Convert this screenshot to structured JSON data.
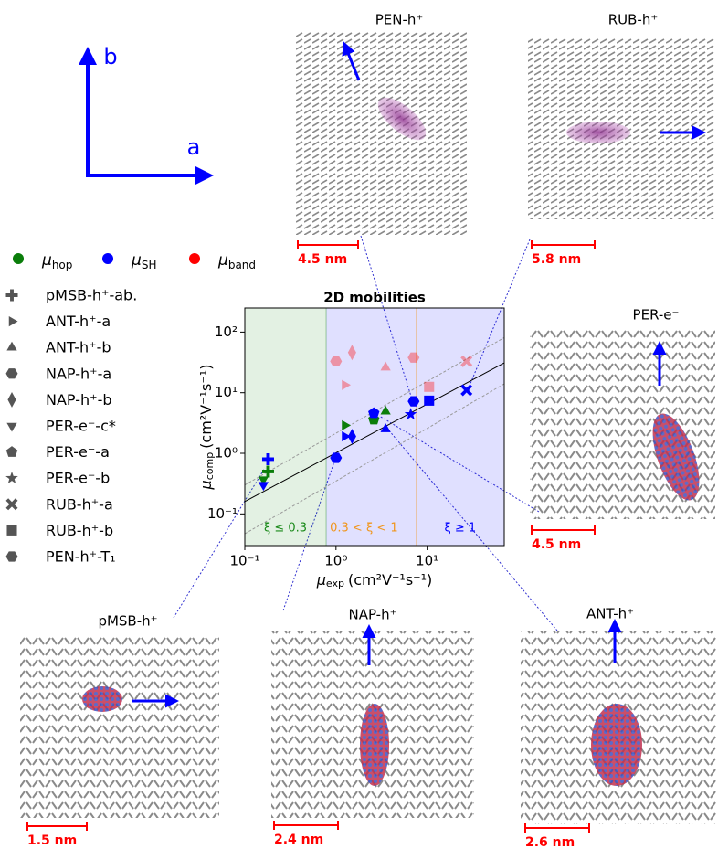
{
  "axis_labels": {
    "a": "a",
    "b": "b"
  },
  "panels": [
    {
      "label": "PEN-h⁺",
      "scale_bar": "4.5 nm"
    },
    {
      "label": "RUB-h⁺",
      "scale_bar": "5.8 nm"
    },
    {
      "label": "PER-e⁻",
      "scale_bar": "4.5 nm"
    },
    {
      "label": "pMSB-h⁺",
      "scale_bar": "1.5 nm"
    },
    {
      "label": "NAP-h⁺",
      "scale_bar": "2.4 nm"
    },
    {
      "label": "ANT-h⁺",
      "scale_bar": "2.6 nm"
    }
  ],
  "chart_data": {
    "type": "scatter",
    "title": "2D mobilities",
    "x_label": {
      "symbol": "μ",
      "subscript": "exp",
      "unit": "(cm²V⁻¹s⁻¹)"
    },
    "y_label": {
      "symbol": "μ",
      "subscript": "comp",
      "unit": "(cm²V⁻¹s⁻¹)"
    },
    "log_x": true,
    "log_y": true,
    "xlim": [
      0.1,
      70
    ],
    "ylim": [
      0.03,
      250
    ],
    "xticks": [
      {
        "value": 0.1,
        "label": "10⁻¹"
      },
      {
        "value": 1,
        "label": "10⁰"
      },
      {
        "value": 10,
        "label": "10¹"
      }
    ],
    "yticks": [
      {
        "value": 0.1,
        "label": "10⁻¹"
      },
      {
        "value": 1,
        "label": "10⁰"
      },
      {
        "value": 10,
        "label": "10¹"
      },
      {
        "value": 100,
        "label": "10²"
      }
    ],
    "region_edges": [
      0.78,
      7.6
    ],
    "regions": [
      {
        "label": "ξ ≤ 0.3",
        "color": "#1a8a1a"
      },
      {
        "label": "0.3 < ξ < 1",
        "color": "#f0961e"
      },
      {
        "label": "ξ ≥ 1",
        "color": "#0000ff"
      }
    ],
    "reference_lines": [
      {
        "style": "solid",
        "x": [
          0.1,
          70
        ],
        "values": [
          0.16,
          31
        ]
      },
      {
        "style": "dashed",
        "x": [
          0.1,
          70
        ],
        "values": [
          0.3,
          81
        ]
      },
      {
        "style": "dashed",
        "x": [
          0.1,
          70
        ],
        "values": [
          0.047,
          14
        ]
      }
    ],
    "methods": [
      {
        "symbol": "μ",
        "subscript": "hop",
        "color": "#0a7d0a",
        "alpha": 1
      },
      {
        "symbol": "μ",
        "subscript": "SH",
        "color": "#0000ff",
        "alpha": 1
      },
      {
        "symbol": "μ",
        "subscript": "band",
        "color": "#ff0000",
        "alpha": 0.35
      }
    ],
    "series": [
      {
        "name": "pMSB-h⁺-ab.",
        "marker": "plus",
        "x": 0.18,
        "values": [
          0.5,
          0.8,
          null
        ]
      },
      {
        "name": "ANT-h⁺-a",
        "marker": "triangle-right",
        "x": 1.25,
        "values": [
          2.9,
          1.9,
          13.4
        ]
      },
      {
        "name": "ANT-h⁺-b",
        "marker": "triangle-up",
        "x": 3.5,
        "values": [
          4.9,
          2.5,
          26
        ]
      },
      {
        "name": "NAP-h⁺-a",
        "marker": "hexagon",
        "x": 1.0,
        "values": [
          null,
          0.84,
          33
        ]
      },
      {
        "name": "NAP-h⁺-b",
        "marker": "diamond",
        "x": 1.5,
        "values": [
          null,
          1.9,
          46
        ]
      },
      {
        "name": "PER-e⁻-c*",
        "marker": "triangle-down",
        "x": 0.16,
        "values": [
          0.37,
          0.3,
          null
        ]
      },
      {
        "name": "PER-e⁻-a",
        "marker": "pentagon",
        "x": 2.6,
        "values": [
          3.6,
          4.6,
          null
        ]
      },
      {
        "name": "PER-e⁻-b",
        "marker": "star",
        "x": 6.6,
        "values": [
          null,
          4.4,
          null
        ]
      },
      {
        "name": "RUB-h⁺-a",
        "marker": "x",
        "x": 27,
        "values": [
          null,
          11,
          33
        ]
      },
      {
        "name": "RUB-h⁺-b",
        "marker": "square",
        "x": 10.5,
        "values": [
          null,
          7.4,
          12.5
        ]
      },
      {
        "name": "PEN-h⁺-T₁",
        "marker": "hexagon",
        "x": 7.1,
        "values": [
          null,
          7.2,
          38
        ]
      }
    ]
  }
}
